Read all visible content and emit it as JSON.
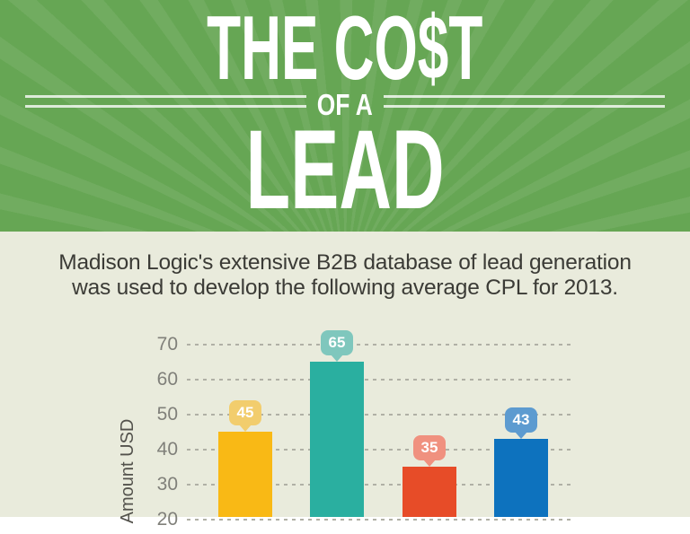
{
  "header": {
    "title_top": "THE CO$T",
    "divider_text": "OF A",
    "title_main": "LEAD",
    "background_color": "#66a654",
    "text_color": "#ffffff"
  },
  "intro": {
    "line1": "Madison Logic's extensive B2B database of lead generation",
    "line2": "was used to develop the following average CPL for 2013."
  },
  "chart_data": {
    "type": "bar",
    "title": "THE CO$T OF A LEAD",
    "ylabel": "Amount USD",
    "yticks": [
      70,
      60,
      50,
      40,
      30,
      20
    ],
    "y_axis_visible_range": [
      20,
      70
    ],
    "grid": "horizontal-dashed",
    "legend": "none",
    "values": [
      45,
      65,
      35,
      43
    ],
    "bars": [
      {
        "label": "45",
        "value": 45,
        "bar_color": "#f9b915",
        "bubble_color": "#f2cd6d"
      },
      {
        "label": "65",
        "value": 65,
        "bar_color": "#2aafa0",
        "bubble_color": "#7fc7bd"
      },
      {
        "label": "35",
        "value": 35,
        "bar_color": "#e74c28",
        "bubble_color": "#f0917f"
      },
      {
        "label": "43",
        "value": 43,
        "bar_color": "#0d72be",
        "bubble_color": "#5d9bd0"
      }
    ],
    "colors": {
      "gridline": "#b0b0a5",
      "tick_text": "#80807a",
      "axis_label_text": "#53524c",
      "background": "#e9ebdc"
    }
  }
}
